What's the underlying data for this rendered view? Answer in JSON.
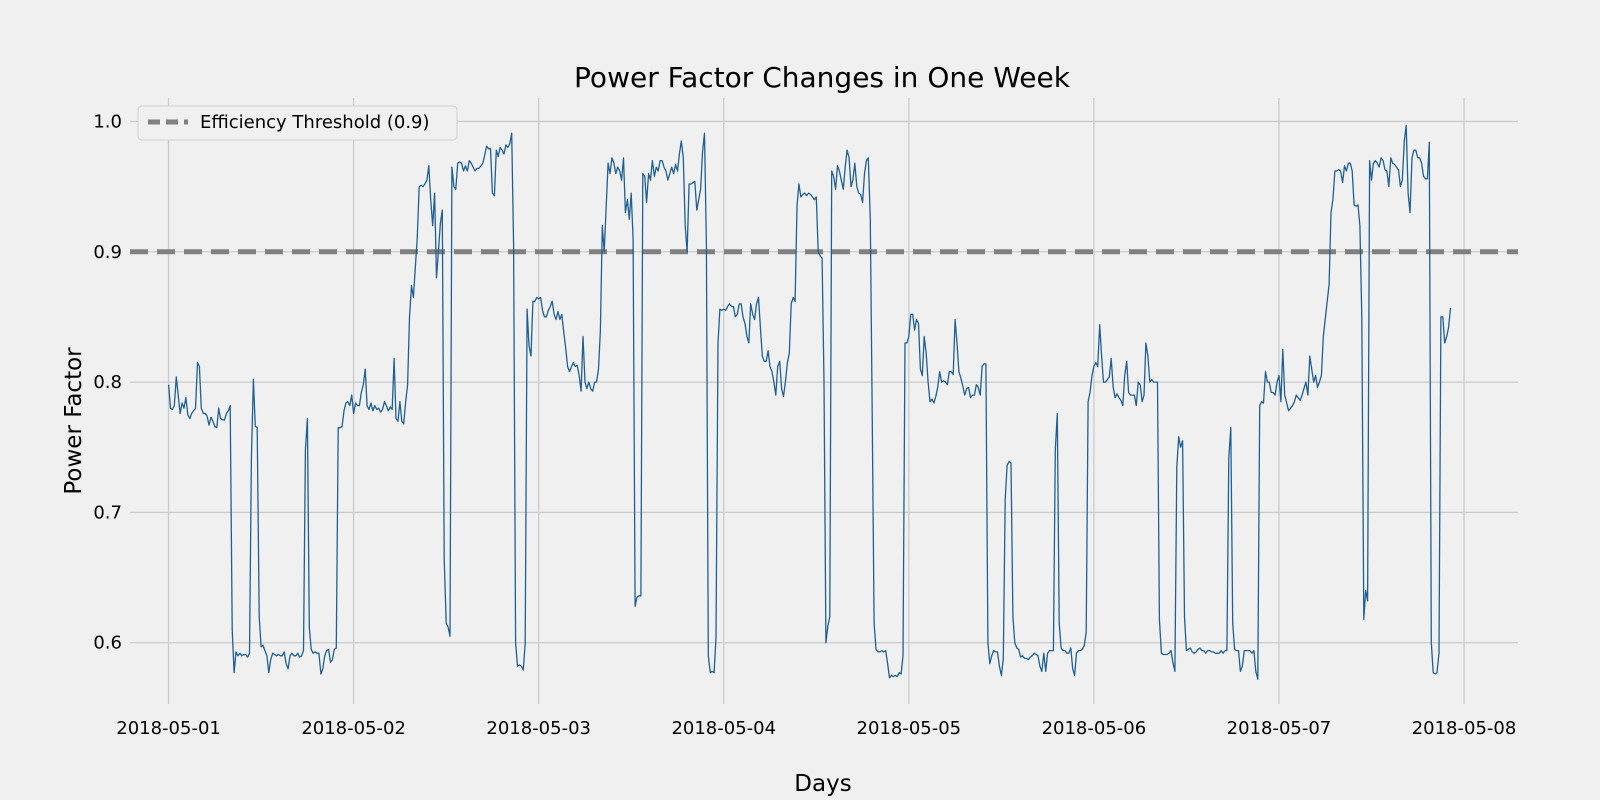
{
  "chart_data": {
    "type": "line",
    "title": "Power Factor Changes in One Week",
    "xlabel": "Days",
    "ylabel": "Power Factor",
    "x_unit": "date",
    "xlim": [
      "2018-04-30T19:00",
      "2018-05-08T07:00"
    ],
    "ylim": [
      0.553,
      1.018
    ],
    "x_ticks": [
      "2018-05-01",
      "2018-05-02",
      "2018-05-03",
      "2018-05-04",
      "2018-05-05",
      "2018-05-06",
      "2018-05-07",
      "2018-05-08"
    ],
    "y_ticks": [
      0.6,
      0.7,
      0.8,
      0.9,
      1.0
    ],
    "y_tick_labels": [
      "0.6",
      "0.7",
      "0.8",
      "0.9",
      "1.0"
    ],
    "grid": true,
    "legend": {
      "placement": "top-left",
      "entries": [
        "Efficiency Threshold (0.9)"
      ]
    },
    "colors": {
      "series": "#1f5f96",
      "threshold": "#808080",
      "background": "#f0f0f0",
      "grid": "#cbcbcb"
    },
    "threshold": {
      "name": "Efficiency Threshold (0.9)",
      "value": 0.9,
      "style": "dashed"
    },
    "series": [
      {
        "start": "2018-05-01T00:00",
        "interval": "15min",
        "points": [
          0.798,
          0.78,
          0.779,
          0.782,
          0.804,
          0.79,
          0.776,
          0.784,
          0.78,
          0.788,
          0.775,
          0.772,
          0.776,
          0.778,
          0.78,
          0.815,
          0.812,
          0.78,
          0.776,
          0.776,
          0.774,
          0.767,
          0.773,
          0.77,
          0.766,
          0.765,
          0.78,
          0.772,
          0.771,
          0.771,
          0.776,
          0.778,
          0.782,
          0.61,
          0.577,
          0.593,
          0.59,
          0.592,
          0.59,
          0.591,
          0.591,
          0.589,
          0.592,
          0.742,
          0.802,
          0.766,
          0.765,
          0.62,
          0.597,
          0.598,
          0.594,
          0.59,
          0.577,
          0.587,
          0.592,
          0.591,
          0.59,
          0.591,
          0.59,
          0.59,
          0.593,
          0.584,
          0.58,
          0.59,
          0.592,
          0.59,
          0.59,
          0.592,
          0.589,
          0.59,
          0.594,
          0.748,
          0.772,
          0.612,
          0.595,
          0.592,
          0.593,
          0.592,
          0.592,
          0.576,
          0.58,
          0.59,
          0.594,
          0.595,
          0.585,
          0.587,
          0.595,
          0.596,
          0.765,
          0.765,
          0.766,
          0.778,
          0.784,
          0.785,
          0.782,
          0.79,
          0.776,
          0.784,
          0.782,
          0.782,
          0.792,
          0.798,
          0.81,
          0.782,
          0.779,
          0.784,
          0.778,
          0.782,
          0.779,
          0.78,
          0.777,
          0.779,
          0.785,
          0.782,
          0.778,
          0.781,
          0.779,
          0.818,
          0.772,
          0.77,
          0.785,
          0.77,
          0.768,
          0.785,
          0.798,
          0.85,
          0.874,
          0.865,
          0.888,
          0.91,
          0.95,
          0.951,
          0.95,
          0.952,
          0.955,
          0.966,
          0.94,
          0.92,
          0.945,
          0.88,
          0.9,
          0.922,
          0.932,
          0.664,
          0.615,
          0.612,
          0.605,
          0.965,
          0.95,
          0.948,
          0.968,
          0.969,
          0.968,
          0.962,
          0.966,
          0.962,
          0.97,
          0.968,
          0.965,
          0.962,
          0.964,
          0.964,
          0.966,
          0.968,
          0.974,
          0.981,
          0.979,
          0.979,
          0.945,
          0.943,
          0.978,
          0.973,
          0.98,
          0.978,
          0.975,
          0.982,
          0.98,
          0.983,
          0.991,
          0.905,
          0.6,
          0.582,
          0.583,
          0.582,
          0.579,
          0.6,
          0.856,
          0.828,
          0.82,
          0.862,
          0.862,
          0.865,
          0.864,
          0.865,
          0.855,
          0.85,
          0.85,
          0.855,
          0.858,
          0.862,
          0.852,
          0.848,
          0.854,
          0.848,
          0.852,
          0.838,
          0.826,
          0.812,
          0.808,
          0.812,
          0.815,
          0.812,
          0.813,
          0.805,
          0.793,
          0.835,
          0.8,
          0.795,
          0.8,
          0.795,
          0.793,
          0.8,
          0.8,
          0.81,
          0.84,
          0.92,
          0.9,
          0.935,
          0.968,
          0.96,
          0.972,
          0.968,
          0.96,
          0.965,
          0.962,
          0.955,
          0.972,
          0.93,
          0.94,
          0.925,
          0.945,
          0.91,
          0.628,
          0.635,
          0.636,
          0.636,
          0.96,
          0.958,
          0.938,
          0.96,
          0.955,
          0.97,
          0.958,
          0.965,
          0.962,
          0.97,
          0.97,
          0.965,
          0.962,
          0.955,
          0.96,
          0.965,
          0.96,
          0.967,
          0.962,
          0.975,
          0.985,
          0.972,
          0.92,
          0.9,
          0.952,
          0.952,
          0.953,
          0.954,
          0.932,
          0.94,
          0.948,
          0.976,
          0.991,
          0.905,
          0.59,
          0.577,
          0.578,
          0.577,
          0.604,
          0.83,
          0.856,
          0.855,
          0.856,
          0.855,
          0.858,
          0.86,
          0.858,
          0.858,
          0.85,
          0.852,
          0.86,
          0.86,
          0.85,
          0.845,
          0.835,
          0.83,
          0.86,
          0.852,
          0.848,
          0.86,
          0.865,
          0.842,
          0.82,
          0.816,
          0.816,
          0.824,
          0.812,
          0.808,
          0.8,
          0.79,
          0.812,
          0.816,
          0.795,
          0.789,
          0.8,
          0.815,
          0.822,
          0.86,
          0.865,
          0.862,
          0.935,
          0.952,
          0.942,
          0.944,
          0.945,
          0.943,
          0.945,
          0.944,
          0.942,
          0.94,
          0.942,
          0.9,
          0.897,
          0.895,
          0.8,
          0.6,
          0.613,
          0.62,
          0.962,
          0.958,
          0.948,
          0.966,
          0.962,
          0.955,
          0.948,
          0.965,
          0.978,
          0.972,
          0.95,
          0.955,
          0.968,
          0.95,
          0.945,
          0.944,
          0.938,
          0.96,
          0.97,
          0.972,
          0.925,
          0.776,
          0.615,
          0.595,
          0.593,
          0.593,
          0.594,
          0.593,
          0.594,
          0.584,
          0.573,
          0.575,
          0.574,
          0.575,
          0.574,
          0.577,
          0.576,
          0.59,
          0.83,
          0.83,
          0.835,
          0.852,
          0.852,
          0.84,
          0.848,
          0.845,
          0.81,
          0.805,
          0.835,
          0.822,
          0.8,
          0.785,
          0.787,
          0.784,
          0.789,
          0.796,
          0.808,
          0.8,
          0.801,
          0.8,
          0.798,
          0.808,
          0.808,
          0.806,
          0.848,
          0.83,
          0.808,
          0.803,
          0.797,
          0.79,
          0.795,
          0.796,
          0.788,
          0.79,
          0.79,
          0.798,
          0.796,
          0.79,
          0.812,
          0.814,
          0.814,
          0.6,
          0.584,
          0.59,
          0.594,
          0.593,
          0.593,
          0.582,
          0.575,
          0.588,
          0.71,
          0.736,
          0.739,
          0.738,
          0.62,
          0.6,
          0.596,
          0.595,
          0.589,
          0.59,
          0.588,
          0.588,
          0.587,
          0.589,
          0.59,
          0.592,
          0.591,
          0.59,
          0.582,
          0.578,
          0.592,
          0.578,
          0.592,
          0.594,
          0.594,
          0.594,
          0.748,
          0.776,
          0.615,
          0.596,
          0.594,
          0.594,
          0.592,
          0.592,
          0.596,
          0.58,
          0.575,
          0.592,
          0.594,
          0.594,
          0.595,
          0.598,
          0.608,
          0.785,
          0.792,
          0.805,
          0.812,
          0.815,
          0.812,
          0.844,
          0.82,
          0.8,
          0.8,
          0.802,
          0.804,
          0.818,
          0.796,
          0.788,
          0.791,
          0.788,
          0.786,
          0.782,
          0.805,
          0.816,
          0.792,
          0.79,
          0.79,
          0.79,
          0.782,
          0.8,
          0.798,
          0.785,
          0.79,
          0.83,
          0.82,
          0.8,
          0.802,
          0.8,
          0.8,
          0.8,
          0.618,
          0.592,
          0.591,
          0.591,
          0.591,
          0.592,
          0.594,
          0.585,
          0.578,
          0.735,
          0.758,
          0.75,
          0.755,
          0.62,
          0.594,
          0.595,
          0.596,
          0.593,
          0.592,
          0.593,
          0.595,
          0.596,
          0.594,
          0.594,
          0.592,
          0.594,
          0.594,
          0.593,
          0.593,
          0.592,
          0.592,
          0.592,
          0.594,
          0.592,
          0.594,
          0.594,
          0.742,
          0.765,
          0.615,
          0.595,
          0.594,
          0.594,
          0.578,
          0.582,
          0.594,
          0.594,
          0.594,
          0.594,
          0.592,
          0.594,
          0.578,
          0.572,
          0.782,
          0.785,
          0.784,
          0.808,
          0.8,
          0.8,
          0.792,
          0.792,
          0.79,
          0.8,
          0.805,
          0.785,
          0.825,
          0.79,
          0.784,
          0.778,
          0.78,
          0.782,
          0.785,
          0.79,
          0.788,
          0.786,
          0.79,
          0.795,
          0.8,
          0.79,
          0.82,
          0.81,
          0.8,
          0.805,
          0.796,
          0.8,
          0.805,
          0.835,
          0.848,
          0.862,
          0.875,
          0.93,
          0.94,
          0.962,
          0.962,
          0.963,
          0.962,
          0.953,
          0.966,
          0.962,
          0.968,
          0.968,
          0.962,
          0.936,
          0.935,
          0.936,
          0.92,
          0.85,
          0.618,
          0.64,
          0.632,
          0.97,
          0.955,
          0.968,
          0.97,
          0.968,
          0.965,
          0.972,
          0.97,
          0.963,
          0.962,
          0.95,
          0.972,
          0.968,
          0.967,
          0.965,
          0.963,
          0.95,
          0.955,
          0.985,
          0.997,
          0.945,
          0.93,
          0.972,
          0.978,
          0.978,
          0.972,
          0.972,
          0.968,
          0.958,
          0.956,
          0.956,
          0.984,
          0.6,
          0.577,
          0.576,
          0.577,
          0.592,
          0.85,
          0.85,
          0.83,
          0.835,
          0.842,
          0.857
        ]
      }
    ]
  }
}
